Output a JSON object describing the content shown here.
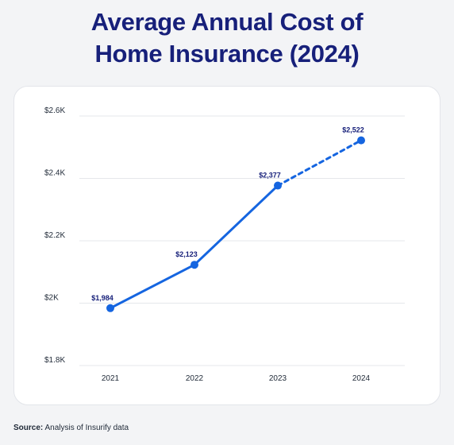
{
  "title_line1": "Average Annual Cost of",
  "title_line2": "Home Insurance (2024)",
  "source_label": "Source:",
  "source_text": "Analysis of Insurify data",
  "colors": {
    "title": "#17207a",
    "line": "#1565e0",
    "label": "#17207a",
    "grid": "#e5e7eb",
    "axis_text": "#1f2937"
  },
  "chart_data": {
    "type": "line",
    "title": "Average Annual Cost of Home Insurance (2024)",
    "xlabel": "",
    "ylabel": "",
    "categories": [
      "2021",
      "2022",
      "2023",
      "2024"
    ],
    "values": [
      1984,
      2123,
      2377,
      2522
    ],
    "data_labels": [
      "$1,984",
      "$2,123",
      "$2,377",
      "$2,522"
    ],
    "ylim": [
      1800,
      2600
    ],
    "yticks": [
      1800,
      2000,
      2200,
      2400,
      2600
    ],
    "ytick_labels": [
      "$1.8K",
      "$2K",
      "$2.2K",
      "$2.4K",
      "$2.6K"
    ],
    "projected_from_index": 2,
    "grid": "horizontal",
    "legend": "none"
  }
}
